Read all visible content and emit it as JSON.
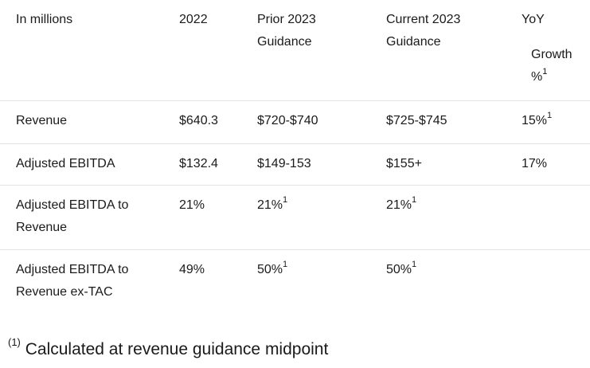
{
  "table": {
    "headers": {
      "label": "In millions",
      "col_2022": "2022",
      "col_prior_line1": "Prior 2023",
      "col_prior_line2": "Guidance",
      "col_current_line1": "Current 2023",
      "col_current_line2": "Guidance",
      "col_yoy_line1": "YoY",
      "col_yoy_line2": "Growth",
      "col_yoy_line3": "%",
      "col_yoy_sup": "1"
    },
    "rows": [
      {
        "label": "Revenue",
        "y2022": "$640.3",
        "prior": "$720-$740",
        "current": "$725-$745",
        "yoy": "15%",
        "yoy_sup": "1"
      },
      {
        "label": "Adjusted EBITDA",
        "y2022": "$132.4",
        "prior": "$149-153",
        "current": "$155+",
        "yoy": "17%"
      },
      {
        "label_line1": "Adjusted EBITDA to",
        "label_line2": "Revenue",
        "y2022": "21%",
        "prior": "21%",
        "prior_sup": "1",
        "current": "21%",
        "current_sup": "1"
      },
      {
        "label_line1": "Adjusted EBITDA to",
        "label_line2": "Revenue ex-TAC",
        "y2022": "49%",
        "prior": "50%",
        "prior_sup": "1",
        "current": "50%",
        "current_sup": "1"
      }
    ]
  },
  "footnote": {
    "marker": "(1)",
    "text": "Calculated at revenue guidance midpoint"
  }
}
